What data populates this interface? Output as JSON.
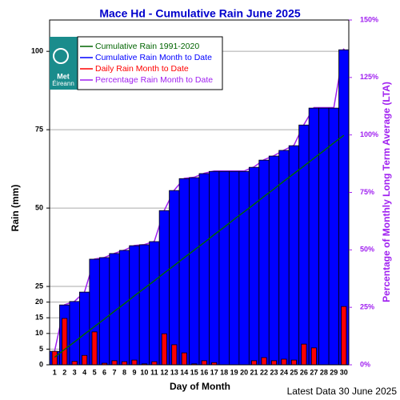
{
  "chart_data": {
    "type": "bar",
    "title": "Mace Hd - Cumulative Rain June   2025",
    "x_label": "Day of Month",
    "y_label": "Rain (mm)",
    "y2_label": "Percentage  of Monthly Long Term Average (LTA)",
    "footer": "Latest Data 30 June 2025",
    "logo": {
      "line1": "Met",
      "line2": "Éireann"
    },
    "categories": [
      "1",
      "2",
      "3",
      "4",
      "5",
      "6",
      "7",
      "8",
      "9",
      "10",
      "11",
      "12",
      "13",
      "14",
      "15",
      "16",
      "17",
      "18",
      "19",
      "20",
      "21",
      "22",
      "23",
      "24",
      "25",
      "26",
      "27",
      "28",
      "29",
      "30"
    ],
    "series": [
      {
        "name": "Cumulative Rain 1991-2020",
        "color": "#006400",
        "kind": "line",
        "values": [
          2.4,
          4.9,
          7.3,
          9.8,
          12.2,
          14.6,
          17.1,
          19.5,
          22.0,
          24.4,
          26.8,
          29.3,
          31.7,
          34.2,
          36.6,
          39.0,
          41.5,
          43.9,
          46.4,
          48.8,
          51.2,
          53.7,
          56.1,
          58.6,
          61.0,
          63.4,
          65.9,
          68.3,
          70.8,
          73.2
        ]
      },
      {
        "name": "Cumulative Rain Month to Date",
        "color": "#0000ff",
        "kind": "bar",
        "values": [
          4.3,
          19.1,
          20.2,
          23.2,
          33.7,
          34.2,
          35.5,
          36.5,
          38.0,
          38.3,
          39.3,
          49.2,
          55.6,
          59.4,
          59.7,
          61.0,
          61.7,
          61.7,
          61.7,
          61.7,
          63.0,
          65.3,
          66.6,
          68.4,
          69.9,
          76.5,
          81.9,
          81.9,
          81.9,
          100.5
        ]
      },
      {
        "name": "Daily Rain Month to Date",
        "color": "#ff0000",
        "kind": "bar",
        "values": [
          4.3,
          14.8,
          1.1,
          3.0,
          10.5,
          0.5,
          1.3,
          1.0,
          1.5,
          0.3,
          1.0,
          9.9,
          6.4,
          3.8,
          0.3,
          1.3,
          0.7,
          0,
          0,
          0,
          1.3,
          2.3,
          1.3,
          1.8,
          1.5,
          6.6,
          5.4,
          0,
          0,
          18.6
        ]
      },
      {
        "name": "Percentage Rain Month to Date",
        "color": "#a020f0",
        "kind": "line",
        "axis": "y2",
        "values": [
          5.9,
          26.1,
          27.6,
          31.7,
          46.0,
          46.7,
          48.5,
          49.9,
          51.9,
          52.3,
          53.7,
          67.2,
          76.0,
          81.1,
          81.6,
          83.3,
          84.3,
          84.3,
          84.3,
          84.3,
          86.1,
          89.2,
          91.0,
          93.4,
          95.5,
          104.5,
          111.9,
          111.9,
          111.9,
          137.3
        ]
      }
    ],
    "ylim": [
      0,
      110
    ],
    "yticks": [
      0,
      5,
      10,
      15,
      20,
      25,
      50,
      75,
      100
    ],
    "y2lim": [
      0,
      150
    ],
    "y2ticks": [
      {
        "value": 0,
        "label": "0%"
      },
      {
        "value": 25,
        "label": "25%"
      },
      {
        "value": 50,
        "label": "50%"
      },
      {
        "value": 75,
        "label": "75%"
      },
      {
        "value": 100,
        "label": "100%"
      },
      {
        "value": 125,
        "label": "125%"
      },
      {
        "value": 150,
        "label": "150%"
      }
    ],
    "grid": true,
    "title_color": "#0000cc",
    "y2_color": "#a020f0"
  }
}
